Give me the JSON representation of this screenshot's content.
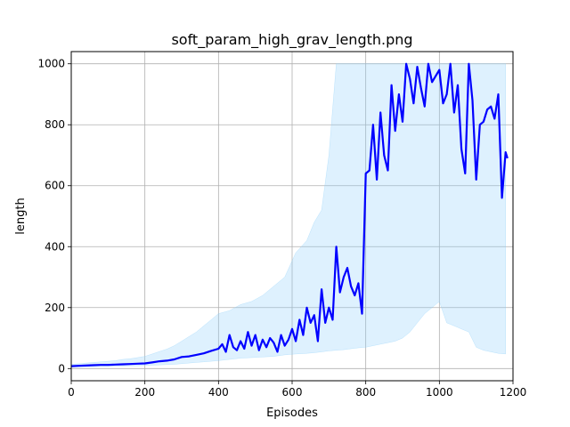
{
  "chart_data": {
    "type": "line",
    "title": "soft_param_high_grav_length.png",
    "xlabel": "Episodes",
    "ylabel": "length",
    "xlim": [
      0,
      1200
    ],
    "ylim": [
      -40,
      1040
    ],
    "xticks": [
      0,
      200,
      400,
      600,
      800,
      1000,
      1200
    ],
    "yticks": [
      0,
      200,
      400,
      600,
      800,
      1000
    ],
    "grid": true,
    "colors": {
      "mean": "#0000ff",
      "band": "#87cefa"
    },
    "mean_series": {
      "x": [
        0,
        20,
        40,
        60,
        80,
        100,
        120,
        140,
        160,
        180,
        200,
        220,
        240,
        260,
        280,
        300,
        320,
        340,
        360,
        380,
        400,
        410,
        420,
        430,
        440,
        450,
        460,
        470,
        480,
        490,
        500,
        510,
        520,
        530,
        540,
        550,
        560,
        570,
        580,
        590,
        600,
        610,
        620,
        630,
        640,
        650,
        660,
        670,
        680,
        690,
        700,
        710,
        720,
        730,
        740,
        750,
        760,
        770,
        780,
        790,
        800,
        810,
        820,
        830,
        840,
        850,
        860,
        870,
        880,
        890,
        900,
        910,
        920,
        930,
        940,
        950,
        960,
        970,
        980,
        990,
        1000,
        1010,
        1020,
        1030,
        1040,
        1050,
        1060,
        1070,
        1080,
        1090,
        1100,
        1110,
        1120,
        1130,
        1140,
        1150,
        1160,
        1170,
        1180,
        1185
      ],
      "y": [
        8,
        9,
        10,
        11,
        12,
        12,
        13,
        14,
        15,
        16,
        17,
        20,
        24,
        26,
        30,
        38,
        40,
        45,
        50,
        58,
        65,
        80,
        55,
        110,
        70,
        60,
        90,
        65,
        120,
        75,
        110,
        60,
        95,
        70,
        100,
        85,
        55,
        110,
        75,
        95,
        130,
        90,
        160,
        110,
        200,
        150,
        175,
        90,
        260,
        150,
        200,
        160,
        400,
        250,
        300,
        330,
        270,
        240,
        280,
        180,
        640,
        650,
        800,
        620,
        840,
        700,
        650,
        930,
        780,
        900,
        810,
        1000,
        950,
        870,
        990,
        920,
        860,
        1000,
        940,
        960,
        980,
        870,
        900,
        1000,
        840,
        930,
        720,
        640,
        1000,
        880,
        620,
        800,
        810,
        850,
        860,
        820,
        900,
        560,
        710,
        690
      ]
    },
    "spread_band": {
      "x": [
        0,
        20,
        40,
        60,
        80,
        100,
        120,
        140,
        160,
        180,
        200,
        220,
        240,
        260,
        280,
        300,
        320,
        340,
        360,
        380,
        400,
        430,
        460,
        490,
        520,
        550,
        580,
        610,
        640,
        660,
        680,
        700,
        720,
        740,
        760,
        780,
        800,
        820,
        840,
        860,
        880,
        900,
        920,
        940,
        960,
        980,
        1000,
        1020,
        1040,
        1060,
        1080,
        1100,
        1120,
        1140,
        1160,
        1180
      ],
      "lower": [
        5,
        5,
        6,
        6,
        7,
        7,
        8,
        8,
        9,
        9,
        10,
        11,
        12,
        13,
        14,
        16,
        18,
        20,
        22,
        24,
        26,
        30,
        34,
        36,
        38,
        40,
        45,
        48,
        50,
        52,
        55,
        58,
        60,
        62,
        65,
        68,
        70,
        75,
        80,
        85,
        90,
        100,
        120,
        150,
        180,
        200,
        220,
        150,
        140,
        130,
        120,
        70,
        60,
        55,
        50,
        48
      ],
      "upper": [
        14,
        16,
        18,
        20,
        22,
        24,
        26,
        30,
        32,
        36,
        40,
        48,
        56,
        64,
        75,
        90,
        105,
        120,
        140,
        160,
        180,
        190,
        210,
        220,
        240,
        270,
        300,
        380,
        420,
        480,
        520,
        700,
        1000,
        1000,
        1000,
        1000,
        1000,
        1000,
        1000,
        1000,
        1000,
        1000,
        1000,
        1000,
        1000,
        1000,
        1000,
        1000,
        1000,
        1000,
        1000,
        1000,
        1000,
        1000,
        1000,
        1000
      ]
    }
  }
}
